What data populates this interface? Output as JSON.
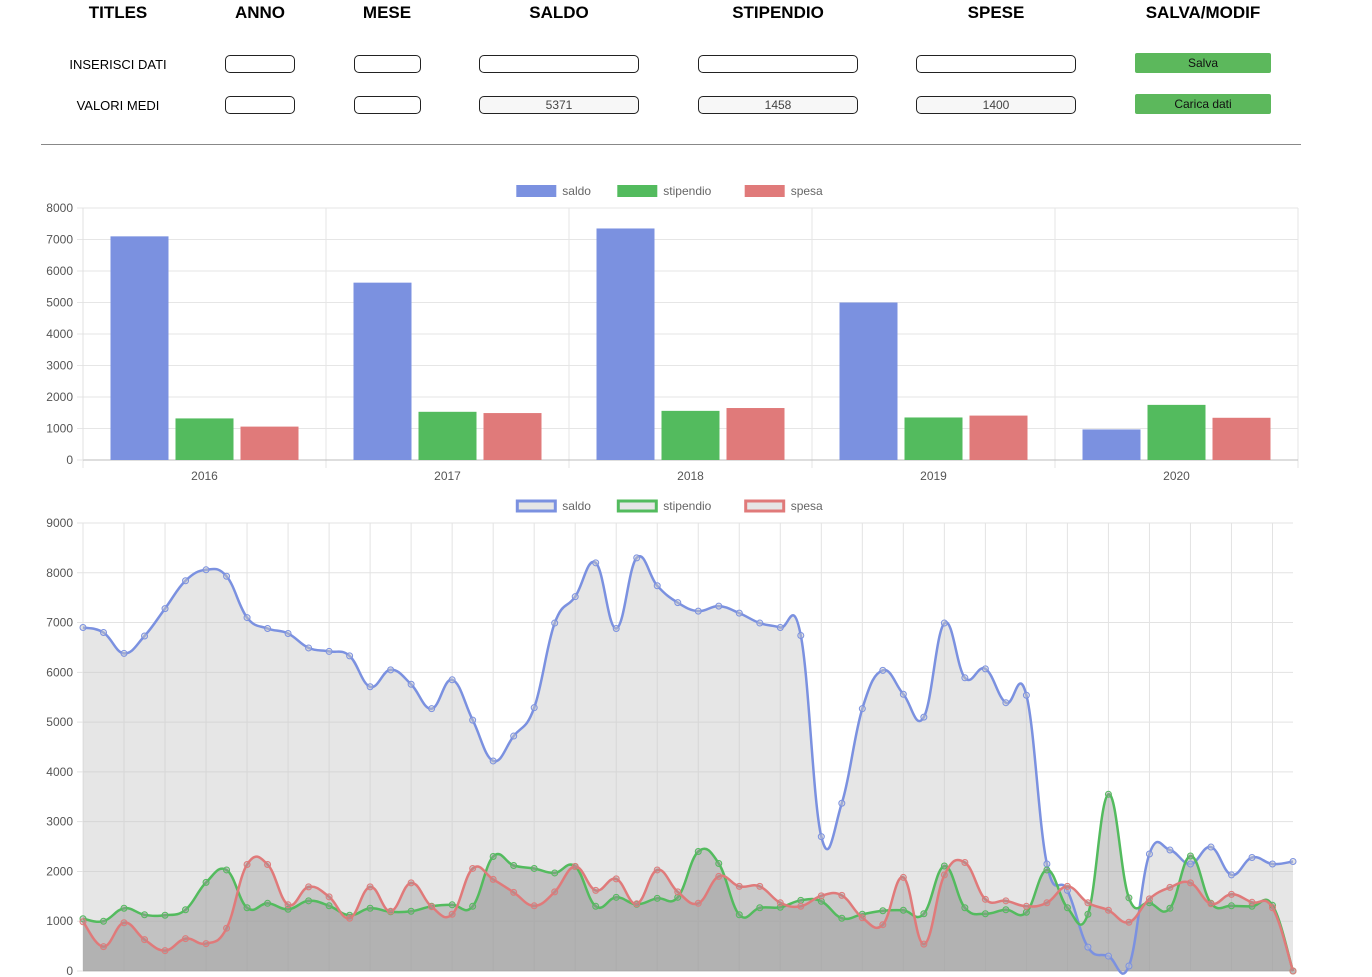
{
  "form": {
    "headers": {
      "titles": "TITLES",
      "anno": "ANNO",
      "mese": "MESE",
      "saldo": "SALDO",
      "stipendio": "STIPENDIO",
      "spese": "SPESE",
      "salva_modif": "SALVA/MODIF"
    },
    "insert_row": {
      "label": "INSERISCI DATI",
      "anno": "",
      "mese": "",
      "saldo": "",
      "stipendio": "",
      "spese": "",
      "button": "Salva"
    },
    "avg_row": {
      "label": "VALORI MEDI",
      "anno": "",
      "mese": "",
      "saldo": "5371",
      "stipendio": "1458",
      "spese": "1400",
      "button": "Carica dati"
    },
    "button_color": "#5cb85c"
  },
  "chart_data": [
    {
      "type": "bar",
      "categories": [
        "2016",
        "2017",
        "2018",
        "2019",
        "2020"
      ],
      "series": [
        {
          "name": "saldo",
          "color": "#7b91e0",
          "values": [
            7100,
            5630,
            7350,
            5000,
            970
          ]
        },
        {
          "name": "stipendio",
          "color": "#53bb5e",
          "values": [
            1320,
            1530,
            1560,
            1350,
            1750
          ]
        },
        {
          "name": "spesa",
          "color": "#e07a7a",
          "values": [
            1060,
            1490,
            1650,
            1410,
            1340
          ]
        }
      ],
      "ylim": [
        0,
        8000
      ],
      "yticks": [
        "0",
        "1000",
        "2000",
        "3000",
        "4000",
        "5000",
        "6000",
        "7000",
        "8000"
      ],
      "legend": "top-center",
      "grid": true
    },
    {
      "type": "area",
      "series": [
        {
          "name": "saldo",
          "color": "#7b91e0",
          "fill": "rgba(200,200,200,0.45)",
          "values": [
            6900,
            6800,
            6380,
            6730,
            7280,
            7840,
            8060,
            7930,
            7100,
            6880,
            6780,
            6490,
            6420,
            6330,
            5710,
            6050,
            5760,
            5270,
            5850,
            5040,
            4220,
            4720,
            5290,
            6990,
            7520,
            8200,
            6880,
            8300,
            7740,
            7400,
            7230,
            7330,
            7190,
            6990,
            6900,
            6740,
            2700,
            3370,
            5270,
            6040,
            5560,
            5100,
            6990,
            5890,
            6070,
            5390,
            5540,
            2150,
            1620,
            480,
            300,
            100,
            2350,
            2430,
            2150,
            2490,
            1930,
            2280,
            2150,
            2200
          ]
        },
        {
          "name": "stipendio",
          "color": "#53bb5e",
          "fill": "rgba(150,150,150,0.45)",
          "values": [
            1050,
            1000,
            1260,
            1130,
            1120,
            1230,
            1780,
            2030,
            1270,
            1360,
            1240,
            1410,
            1310,
            1120,
            1260,
            1190,
            1200,
            1300,
            1330,
            1300,
            2300,
            2120,
            2060,
            1970,
            2100,
            1300,
            1480,
            1340,
            1460,
            1480,
            2400,
            2160,
            1130,
            1270,
            1280,
            1420,
            1400,
            1060,
            1140,
            1210,
            1220,
            1150,
            2110,
            1270,
            1150,
            1230,
            1180,
            2030,
            1270,
            1140,
            3550,
            1470,
            1370,
            1260,
            2310,
            1360,
            1310,
            1300,
            1320,
            0
          ]
        },
        {
          "name": "spesa",
          "color": "#e07a7a",
          "fill": "rgba(150,150,150,0.35)",
          "values": [
            990,
            490,
            970,
            630,
            410,
            650,
            550,
            860,
            2140,
            2140,
            1330,
            1690,
            1490,
            1060,
            1690,
            1200,
            1770,
            1290,
            1140,
            2060,
            1840,
            1580,
            1310,
            1590,
            2100,
            1620,
            1850,
            1350,
            2030,
            1590,
            1360,
            1900,
            1700,
            1700,
            1370,
            1300,
            1510,
            1520,
            1070,
            930,
            1880,
            540,
            1930,
            2180,
            1440,
            1410,
            1300,
            1370,
            1700,
            1370,
            1220,
            980,
            1450,
            1680,
            1770,
            1350,
            1540,
            1380,
            1270,
            0
          ]
        }
      ],
      "ylim": [
        0,
        9000
      ],
      "yticks": [
        "0",
        "1000",
        "2000",
        "3000",
        "4000",
        "5000",
        "6000",
        "7000",
        "8000",
        "9000"
      ],
      "legend": "top-center",
      "grid": true
    }
  ]
}
